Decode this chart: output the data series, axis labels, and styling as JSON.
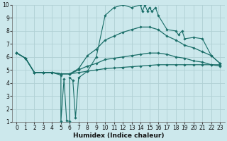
{
  "xlabel": "Humidex (Indice chaleur)",
  "bg_color": "#cce8ec",
  "grid_color": "#b0d0d4",
  "line_color": "#1a6e68",
  "xlim": [
    -0.5,
    23.5
  ],
  "ylim": [
    1,
    10
  ],
  "xticks": [
    0,
    1,
    2,
    3,
    4,
    5,
    6,
    7,
    8,
    9,
    10,
    11,
    12,
    13,
    14,
    15,
    16,
    17,
    18,
    19,
    20,
    21,
    22,
    23
  ],
  "yticks": [
    1,
    2,
    3,
    4,
    5,
    6,
    7,
    8,
    9,
    10
  ],
  "line_spiky_x": [
    0,
    1,
    2,
    3,
    4,
    5,
    5,
    5.35,
    5.65,
    6,
    6,
    6.35,
    6.65,
    7,
    8,
    9,
    10,
    11,
    12,
    13,
    14,
    14.2,
    14.5,
    14.8,
    15,
    15.3,
    15.7,
    16,
    17,
    18,
    18.3,
    18.7,
    19,
    20,
    21,
    22,
    23
  ],
  "line_spiky_y": [
    6.3,
    5.9,
    4.8,
    4.8,
    4.8,
    4.6,
    1.05,
    4.3,
    1.1,
    1.05,
    4.4,
    4.2,
    1.3,
    4.4,
    4.9,
    6.0,
    9.2,
    9.8,
    10.0,
    9.8,
    10.0,
    9.5,
    10.0,
    9.5,
    9.8,
    9.5,
    9.8,
    9.2,
    8.1,
    8.0,
    7.7,
    8.0,
    7.4,
    7.5,
    7.4,
    6.1,
    5.5
  ],
  "line_upper_x": [
    0,
    1,
    2,
    3,
    4,
    5,
    6,
    7,
    8,
    9,
    10,
    11,
    12,
    13,
    14,
    15,
    16,
    17,
    18,
    19,
    20,
    21,
    22,
    23
  ],
  "line_upper_y": [
    6.3,
    5.9,
    4.8,
    4.8,
    4.8,
    4.7,
    4.7,
    5.1,
    6.1,
    6.6,
    7.3,
    7.6,
    7.9,
    8.1,
    8.3,
    8.3,
    8.1,
    7.6,
    7.3,
    6.9,
    6.7,
    6.4,
    6.1,
    5.5
  ],
  "line_mid_x": [
    0,
    1,
    2,
    3,
    4,
    5,
    6,
    7,
    8,
    9,
    10,
    11,
    12,
    13,
    14,
    15,
    16,
    17,
    18,
    19,
    20,
    21,
    22,
    23
  ],
  "line_mid_y": [
    6.3,
    5.9,
    4.8,
    4.8,
    4.8,
    4.7,
    4.7,
    5.0,
    5.3,
    5.5,
    5.8,
    5.9,
    6.0,
    6.1,
    6.2,
    6.3,
    6.3,
    6.2,
    6.0,
    5.9,
    5.7,
    5.6,
    5.4,
    5.3
  ],
  "line_flat_x": [
    0,
    1,
    2,
    3,
    4,
    5,
    6,
    7,
    8,
    9,
    10,
    11,
    12,
    13,
    14,
    15,
    16,
    17,
    18,
    19,
    20,
    21,
    22,
    23
  ],
  "line_flat_y": [
    6.3,
    5.9,
    4.8,
    4.8,
    4.8,
    4.7,
    4.7,
    4.8,
    4.9,
    5.0,
    5.1,
    5.15,
    5.2,
    5.25,
    5.3,
    5.35,
    5.4,
    5.4,
    5.4,
    5.4,
    5.4,
    5.4,
    5.4,
    5.4
  ]
}
